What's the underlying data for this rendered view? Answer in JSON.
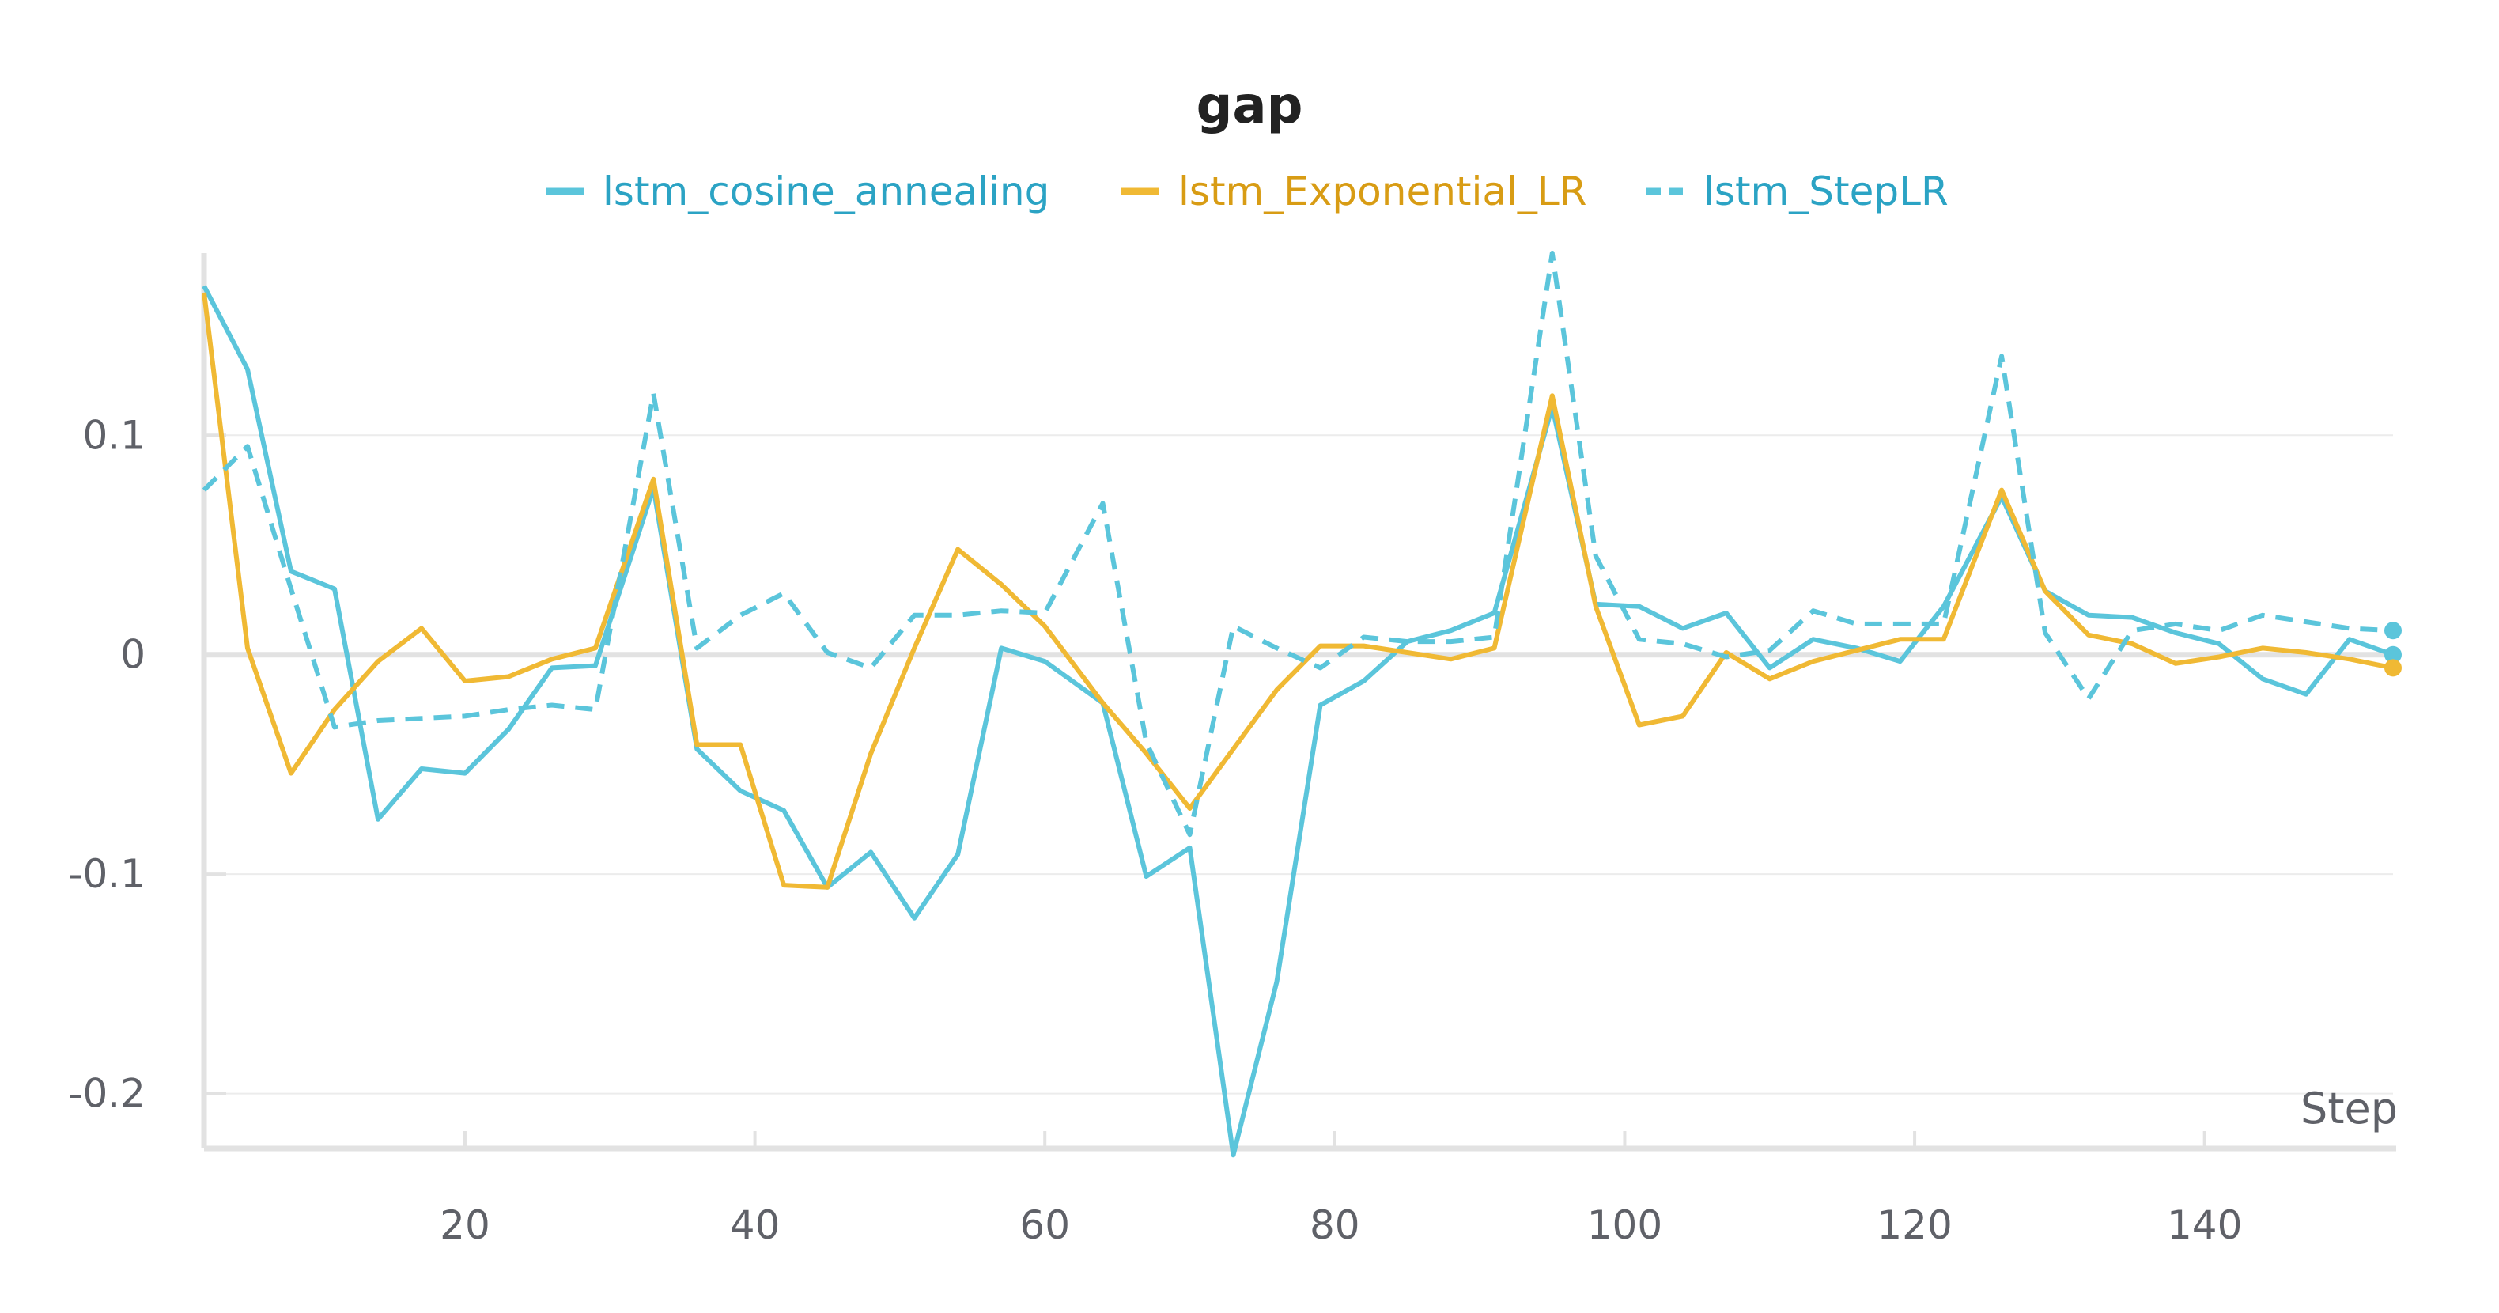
{
  "chart_data": {
    "type": "line",
    "title": "gap",
    "xlabel": "Step",
    "ylabel": "",
    "xlim": [
      2,
      153
    ],
    "ylim": [
      -0.225,
      0.183
    ],
    "x_ticks": [
      20,
      40,
      60,
      80,
      100,
      120,
      140
    ],
    "y_ticks": [
      0.1,
      0,
      -0.1,
      -0.2
    ],
    "x_tick_labels": [
      "20",
      "40",
      "60",
      "80",
      "100",
      "120",
      "140"
    ],
    "y_tick_labels": [
      "0.1",
      "0",
      "-0.1",
      "-0.2"
    ],
    "grid": true,
    "legend_position": "top-center",
    "series": [
      {
        "name": "lstm_cosine_annealing",
        "color": "#5bc5db",
        "dash": "solid",
        "points": [
          [
            2,
            0.168
          ],
          [
            5,
            0.13
          ],
          [
            8,
            0.038
          ],
          [
            11,
            0.03
          ],
          [
            14,
            -0.075
          ],
          [
            17,
            -0.052
          ],
          [
            20,
            -0.054
          ],
          [
            23,
            -0.034
          ],
          [
            26,
            -0.006
          ],
          [
            29,
            -0.005
          ],
          [
            33,
            0.076
          ],
          [
            36,
            -0.043
          ],
          [
            39,
            -0.062
          ],
          [
            42,
            -0.071
          ],
          [
            45,
            -0.106
          ],
          [
            48,
            -0.09
          ],
          [
            51,
            -0.12
          ],
          [
            54,
            -0.091
          ],
          [
            57,
            0.003
          ],
          [
            60,
            -0.003
          ],
          [
            64,
            -0.022
          ],
          [
            67,
            -0.101
          ],
          [
            70,
            -0.088
          ],
          [
            73,
            -0.228
          ],
          [
            76,
            -0.149
          ],
          [
            79,
            -0.023
          ],
          [
            82,
            -0.012
          ],
          [
            85,
            0.006
          ],
          [
            88,
            0.011
          ],
          [
            91,
            0.019
          ],
          [
            95,
            0.113
          ],
          [
            98,
            0.023
          ],
          [
            101,
            0.022
          ],
          [
            104,
            0.012
          ],
          [
            107,
            0.019
          ],
          [
            110,
            -0.006
          ],
          [
            113,
            0.007
          ],
          [
            116,
            0.003
          ],
          [
            119,
            -0.003
          ],
          [
            122,
            0.022
          ],
          [
            126,
            0.072
          ],
          [
            129,
            0.029
          ],
          [
            132,
            0.018
          ],
          [
            135,
            0.017
          ],
          [
            138,
            0.01
          ],
          [
            141,
            0.005
          ],
          [
            144,
            -0.011
          ],
          [
            147,
            -0.018
          ],
          [
            150,
            0.007
          ],
          [
            153,
            0
          ]
        ]
      },
      {
        "name": "lstm_Exponential_LR",
        "color": "#f0b934",
        "dash": "solid",
        "points": [
          [
            2,
            0.165
          ],
          [
            5,
            0.003
          ],
          [
            8,
            -0.054
          ],
          [
            11,
            -0.025
          ],
          [
            14,
            -0.003
          ],
          [
            17,
            0.012
          ],
          [
            20,
            -0.012
          ],
          [
            23,
            -0.01
          ],
          [
            26,
            -0.002
          ],
          [
            29,
            0.003
          ],
          [
            33,
            0.08
          ],
          [
            36,
            -0.041
          ],
          [
            39,
            -0.041
          ],
          [
            42,
            -0.105
          ],
          [
            45,
            -0.106
          ],
          [
            48,
            -0.045
          ],
          [
            51,
            0.003
          ],
          [
            54,
            0.048
          ],
          [
            57,
            0.032
          ],
          [
            60,
            0.013
          ],
          [
            64,
            -0.022
          ],
          [
            67,
            -0.045
          ],
          [
            70,
            -0.07
          ],
          [
            73,
            -0.043
          ],
          [
            76,
            -0.016
          ],
          [
            79,
            0.004
          ],
          [
            82,
            0.004
          ],
          [
            85,
            0.001
          ],
          [
            88,
            -0.002
          ],
          [
            91,
            0.003
          ],
          [
            95,
            0.118
          ],
          [
            98,
            0.022
          ],
          [
            101,
            -0.032
          ],
          [
            104,
            -0.028
          ],
          [
            107,
            0.001
          ],
          [
            110,
            -0.011
          ],
          [
            113,
            -0.003
          ],
          [
            116,
            0.002
          ],
          [
            119,
            0.007
          ],
          [
            122,
            0.007
          ],
          [
            126,
            0.075
          ],
          [
            129,
            0.029
          ],
          [
            132,
            0.009
          ],
          [
            135,
            0.005
          ],
          [
            138,
            -0.004
          ],
          [
            141,
            -0.001
          ],
          [
            144,
            0.003
          ],
          [
            147,
            0.001
          ],
          [
            150,
            -0.002
          ],
          [
            153,
            -0.006
          ]
        ]
      },
      {
        "name": "lstm_StepLR",
        "color": "#5bc5db",
        "dash": "dashed",
        "points": [
          [
            2,
            0.075
          ],
          [
            5,
            0.095
          ],
          [
            8,
            0.03
          ],
          [
            11,
            -0.033
          ],
          [
            14,
            -0.03
          ],
          [
            17,
            -0.029
          ],
          [
            20,
            -0.028
          ],
          [
            23,
            -0.025
          ],
          [
            26,
            -0.023
          ],
          [
            29,
            -0.025
          ],
          [
            33,
            0.119
          ],
          [
            36,
            0.003
          ],
          [
            39,
            0.018
          ],
          [
            42,
            0.028
          ],
          [
            45,
            0.001
          ],
          [
            48,
            -0.006
          ],
          [
            51,
            0.018
          ],
          [
            54,
            0.018
          ],
          [
            57,
            0.02
          ],
          [
            60,
            0.019
          ],
          [
            64,
            0.069
          ],
          [
            67,
            -0.04
          ],
          [
            70,
            -0.082
          ],
          [
            73,
            0.013
          ],
          [
            76,
            0.003
          ],
          [
            79,
            -0.006
          ],
          [
            82,
            0.008
          ],
          [
            85,
            0.006
          ],
          [
            88,
            0.006
          ],
          [
            91,
            0.008
          ],
          [
            95,
            0.183
          ],
          [
            98,
            0.045
          ],
          [
            101,
            0.007
          ],
          [
            104,
            0.005
          ],
          [
            107,
            -0.001
          ],
          [
            110,
            0.002
          ],
          [
            113,
            0.02
          ],
          [
            116,
            0.014
          ],
          [
            119,
            0.014
          ],
          [
            122,
            0.014
          ],
          [
            126,
            0.136
          ],
          [
            129,
            0.01
          ],
          [
            132,
            -0.02
          ],
          [
            135,
            0.011
          ],
          [
            138,
            0.014
          ],
          [
            141,
            0.011
          ],
          [
            144,
            0.018
          ],
          [
            147,
            0.015
          ],
          [
            150,
            0.012
          ],
          [
            153,
            0.011
          ]
        ]
      }
    ]
  }
}
